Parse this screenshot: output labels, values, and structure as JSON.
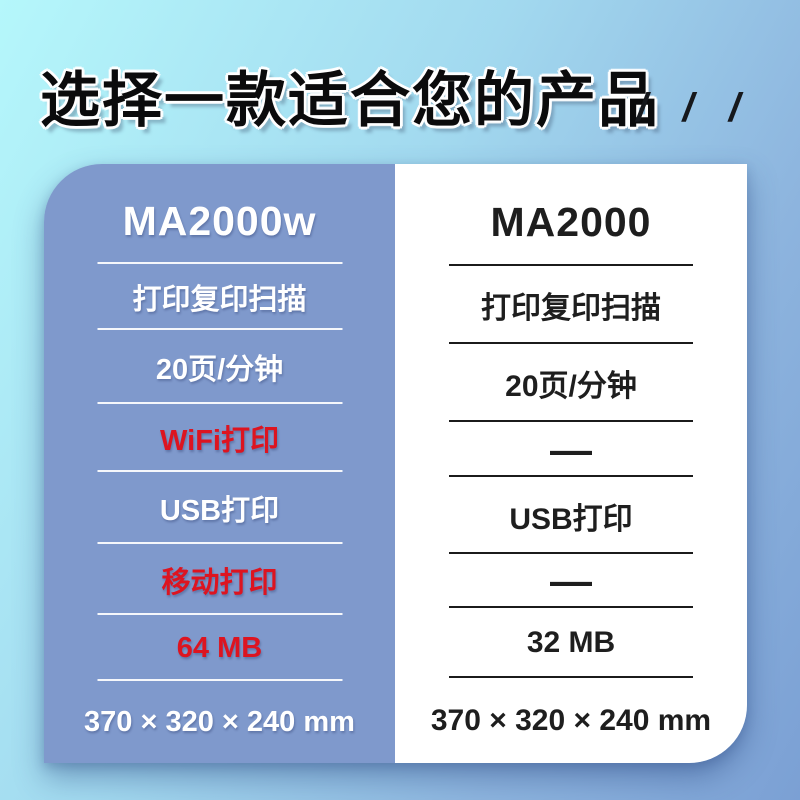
{
  "header": {
    "title": "选择一款适合您的产品",
    "decor_slashes": "/ / /"
  },
  "colors": {
    "bg_top_left": "#b5f7fb",
    "bg_mid": "#a2d9ef",
    "bg_bottom_right": "#7ba0d4",
    "left_card_bg": "#7f99cc",
    "left_card_text": "#ffffff",
    "right_card_bg": "#ffffff",
    "right_card_text": "#1e1e1e",
    "highlight_red": "#dd1420",
    "title_text": "#0b0b0c"
  },
  "comparison": {
    "left_card": {
      "model": "MA2000w",
      "rows": [
        {
          "spec": "functions",
          "text": "打印复印扫描",
          "highlight": false
        },
        {
          "spec": "speed",
          "text": "20页/分钟",
          "highlight": false
        },
        {
          "spec": "wifi",
          "text": "WiFi打印",
          "highlight": true
        },
        {
          "spec": "usb",
          "text": "USB打印",
          "highlight": false
        },
        {
          "spec": "mobile",
          "text": "移动打印",
          "highlight": true
        },
        {
          "spec": "memory",
          "text": "64 MB",
          "highlight": true
        },
        {
          "spec": "dimensions",
          "text": "370 × 320 × 240 mm",
          "highlight": false
        }
      ]
    },
    "right_card": {
      "model": "MA2000",
      "rows": [
        {
          "spec": "functions",
          "text": "打印复印扫描",
          "dash": false
        },
        {
          "spec": "speed",
          "text": "20页/分钟",
          "dash": false
        },
        {
          "spec": "wifi",
          "text": "—",
          "dash": true
        },
        {
          "spec": "usb",
          "text": "USB打印",
          "dash": false
        },
        {
          "spec": "mobile",
          "text": "—",
          "dash": true
        },
        {
          "spec": "memory",
          "text": "32 MB",
          "dash": false
        },
        {
          "spec": "dimensions",
          "text": "370 × 320 × 240 mm",
          "dash": false
        }
      ]
    }
  }
}
